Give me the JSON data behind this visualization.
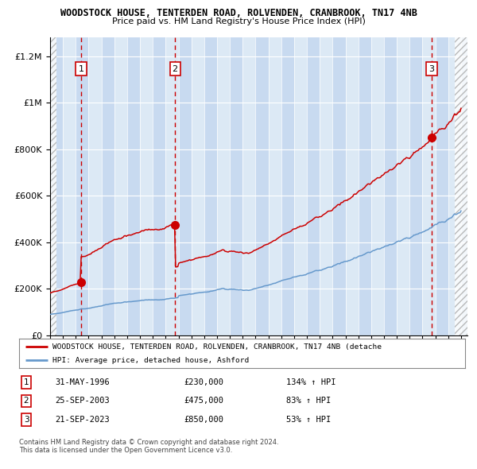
{
  "title": "WOODSTOCK HOUSE, TENTERDEN ROAD, ROLVENDEN, CRANBROOK, TN17 4NB",
  "subtitle": "Price paid vs. HM Land Registry's House Price Index (HPI)",
  "xlim": [
    1994.0,
    2026.5
  ],
  "ylim": [
    0,
    1280000
  ],
  "yticks": [
    0,
    200000,
    400000,
    600000,
    800000,
    1000000,
    1200000
  ],
  "ytick_labels": [
    "£0",
    "£200K",
    "£400K",
    "£600K",
    "£800K",
    "£1M",
    "£1.2M"
  ],
  "sale_dates": [
    1996.42,
    2003.73,
    2023.72
  ],
  "sale_prices": [
    230000,
    475000,
    850000
  ],
  "sale_labels": [
    "1",
    "2",
    "3"
  ],
  "sale_pct": [
    "134%",
    "83%",
    "53%"
  ],
  "sale_date_strs": [
    "31-MAY-1996",
    "25-SEP-2003",
    "21-SEP-2023"
  ],
  "sale_price_strs": [
    "£230,000",
    "£475,000",
    "£850,000"
  ],
  "red_color": "#cc0000",
  "blue_color": "#6699cc",
  "bg_color": "#dce9f5",
  "bg_stripe_color": "#c8daf0",
  "label1": "WOODSTOCK HOUSE, TENTERDEN ROAD, ROLVENDEN, CRANBROOK, TN17 4NB (detache",
  "label2": "HPI: Average price, detached house, Ashford",
  "footer1": "Contains HM Land Registry data © Crown copyright and database right 2024.",
  "footer2": "This data is licensed under the Open Government Licence v3.0."
}
